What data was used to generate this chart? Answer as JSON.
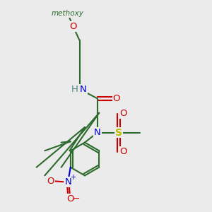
{
  "background_color": "#ebebeb",
  "bond_color": "#2d6b2d",
  "N_color": "#0000cc",
  "O_color": "#cc0000",
  "S_color": "#bbbb00",
  "H_color": "#4a8888",
  "figsize": [
    3.0,
    3.0
  ],
  "dpi": 100,
  "methoxy_label": "methoxy",
  "S_label": "S",
  "N_label": "N",
  "O_label": "O",
  "H_label": "H"
}
